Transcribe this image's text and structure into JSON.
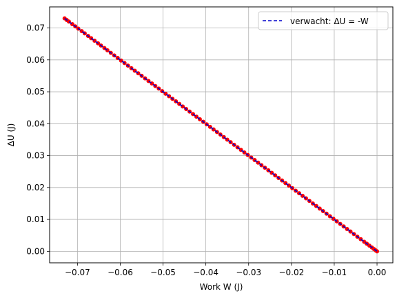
{
  "chart_data": {
    "type": "scatter",
    "title": "",
    "xlabel": "Work W (J)",
    "ylabel": "ΔU (J)",
    "xlim": [
      -0.0765,
      0.0037
    ],
    "ylim": [
      -0.0036,
      0.0766
    ],
    "x_ticks": [
      -0.07,
      -0.06,
      -0.05,
      -0.04,
      -0.03,
      -0.02,
      -0.01,
      0.0
    ],
    "x_tick_labels": [
      "−0.07",
      "−0.06",
      "−0.05",
      "−0.04",
      "−0.03",
      "−0.02",
      "−0.01",
      "0.00"
    ],
    "y_ticks": [
      0.0,
      0.01,
      0.02,
      0.03,
      0.04,
      0.05,
      0.06,
      0.07
    ],
    "y_tick_labels": [
      "0.00",
      "0.01",
      "0.02",
      "0.03",
      "0.04",
      "0.05",
      "0.06",
      "0.07"
    ],
    "grid": true,
    "legend_position": "top-right",
    "series": [
      {
        "kind": "points",
        "color": "#ff0000",
        "x": [
          -0.073,
          -0.0725,
          -0.072,
          -0.0712,
          -0.0705,
          -0.0698,
          -0.069,
          -0.0683,
          -0.0675,
          -0.0668,
          -0.066,
          -0.0652,
          -0.0645,
          -0.0637,
          -0.063,
          -0.0622,
          -0.0614,
          -0.0606,
          -0.0598,
          -0.059,
          -0.0582,
          -0.0574,
          -0.0566,
          -0.0558,
          -0.055,
          -0.0542,
          -0.0534,
          -0.0526,
          -0.0518,
          -0.051,
          -0.0502,
          -0.0494,
          -0.0486,
          -0.0478,
          -0.047,
          -0.0462,
          -0.0454,
          -0.0446,
          -0.0438,
          -0.043,
          -0.0422,
          -0.0414,
          -0.0406,
          -0.0398,
          -0.039,
          -0.0382,
          -0.0374,
          -0.0366,
          -0.0358,
          -0.035,
          -0.0342,
          -0.0334,
          -0.0326,
          -0.0318,
          -0.031,
          -0.0302,
          -0.0294,
          -0.0286,
          -0.0278,
          -0.027,
          -0.0262,
          -0.0254,
          -0.0246,
          -0.0238,
          -0.023,
          -0.0222,
          -0.0214,
          -0.0206,
          -0.0198,
          -0.019,
          -0.0182,
          -0.0174,
          -0.0166,
          -0.0158,
          -0.015,
          -0.0142,
          -0.0134,
          -0.0126,
          -0.0118,
          -0.011,
          -0.0102,
          -0.0094,
          -0.0086,
          -0.0078,
          -0.007,
          -0.0062,
          -0.0054,
          -0.0046,
          -0.0038,
          -0.003,
          -0.0024,
          -0.0018,
          -0.0012,
          -0.0007,
          -0.0003,
          0.0
        ],
        "y": [
          0.073,
          0.0725,
          0.072,
          0.0712,
          0.0705,
          0.0698,
          0.069,
          0.0683,
          0.0675,
          0.0668,
          0.066,
          0.0652,
          0.0645,
          0.0637,
          0.063,
          0.0622,
          0.0614,
          0.0606,
          0.0598,
          0.059,
          0.0582,
          0.0574,
          0.0566,
          0.0558,
          0.055,
          0.0542,
          0.0534,
          0.0526,
          0.0518,
          0.051,
          0.0502,
          0.0494,
          0.0486,
          0.0478,
          0.047,
          0.0462,
          0.0454,
          0.0446,
          0.0438,
          0.043,
          0.0422,
          0.0414,
          0.0406,
          0.0398,
          0.039,
          0.0382,
          0.0374,
          0.0366,
          0.0358,
          0.035,
          0.0342,
          0.0334,
          0.0326,
          0.0318,
          0.031,
          0.0302,
          0.0294,
          0.0286,
          0.0278,
          0.027,
          0.0262,
          0.0254,
          0.0246,
          0.0238,
          0.023,
          0.0222,
          0.0214,
          0.0206,
          0.0198,
          0.019,
          0.0182,
          0.0174,
          0.0166,
          0.0158,
          0.015,
          0.0142,
          0.0134,
          0.0126,
          0.0118,
          0.011,
          0.0102,
          0.0094,
          0.0086,
          0.0078,
          0.007,
          0.0062,
          0.0054,
          0.0046,
          0.0038,
          0.003,
          0.0024,
          0.0018,
          0.0012,
          0.0007,
          0.0003,
          0.0
        ]
      },
      {
        "kind": "line",
        "name": "verwacht: ΔU = -W",
        "color": "#0000cc",
        "dash": "dashed",
        "x": [
          -0.073,
          0.0
        ],
        "y": [
          0.073,
          0.0
        ]
      }
    ]
  }
}
